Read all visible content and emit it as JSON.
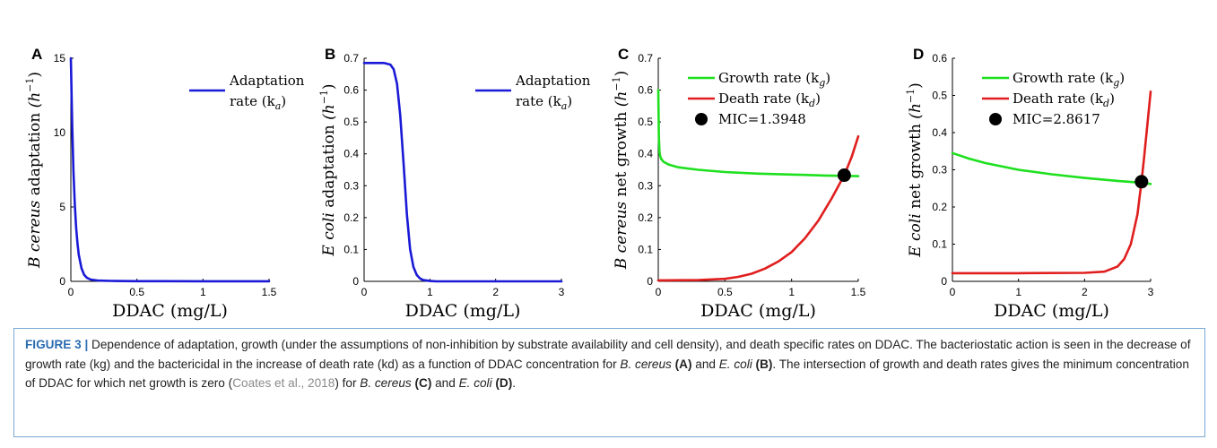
{
  "caption": {
    "label": "FIGURE 3 |",
    "t1": " Dependence of adaptation, growth (under the assumptions of non-inhibition by substrate availability and cell density), and death specific rates on DDAC. The bacteriostatic action is seen in the decrease of growth rate (kg) and the bactericidal in the increase of death rate (kd) as a function of DDAC concentration for ",
    "i1": "B. cereus",
    "b1": "(A)",
    "t2": " and ",
    "i2": "E. coli",
    "b2": "(B)",
    "t3": ". The intersection of growth and death rates gives the minimum concentration of DDAC for which net growth is zero (",
    "cite": "Coates et al., 2018",
    "t4": ") for ",
    "i3": "B. cereus",
    "b3": "(C)",
    "t5": " and ",
    "i4": "E. coli",
    "b4": "(D)",
    "t6": "."
  },
  "chart_data": [
    {
      "panel": "A",
      "type": "line",
      "xlabel": "DDAC (mg/L)",
      "ylabel_parts": [
        "B cereus",
        " adaptation ",
        "(h",
        "−1",
        ")"
      ],
      "xlim": [
        0,
        1.5
      ],
      "ylim": [
        0,
        15
      ],
      "xticks": [
        "0",
        "0.5",
        "1",
        "1.5"
      ],
      "yticks": [
        "0",
        "5",
        "10",
        "15"
      ],
      "series": [
        {
          "name": "Adaptation rate (k_a)",
          "legend_lines": [
            "Adaptation",
            "rate (k",
            "a",
            ")"
          ],
          "color": "#1a1ad6",
          "x": [
            0,
            0.01,
            0.02,
            0.03,
            0.04,
            0.05,
            0.06,
            0.08,
            0.1,
            0.12,
            0.15,
            0.2,
            0.25,
            0.3,
            0.4,
            0.5,
            0.7,
            1.0,
            1.5
          ],
          "y": [
            15,
            10.5,
            7.4,
            5.2,
            3.6,
            2.55,
            1.8,
            0.9,
            0.45,
            0.25,
            0.12,
            0.06,
            0.04,
            0.03,
            0.02,
            0.015,
            0.01,
            0.005,
            0.005
          ]
        }
      ],
      "markers": []
    },
    {
      "panel": "B",
      "type": "line",
      "xlabel": "DDAC (mg/L)",
      "ylabel_parts": [
        "E coli",
        " adaptation ",
        "(h",
        "−1",
        ")"
      ],
      "xlim": [
        0,
        3
      ],
      "ylim": [
        0,
        0.7
      ],
      "xticks": [
        "0",
        "1",
        "2",
        "3"
      ],
      "yticks": [
        "0",
        "0.1",
        "0.2",
        "0.3",
        "0.4",
        "0.5",
        "0.6",
        "0.7"
      ],
      "series": [
        {
          "name": "Adaptation rate (k_a)",
          "legend_lines": [
            "Adaptation",
            "rate (k",
            "a",
            ")"
          ],
          "color": "#1a1ad6",
          "x": [
            0,
            0.3,
            0.4,
            0.45,
            0.5,
            0.55,
            0.6,
            0.65,
            0.7,
            0.75,
            0.8,
            0.85,
            0.9,
            1.0,
            1.1,
            1.5,
            2.0,
            3.0
          ],
          "y": [
            0.685,
            0.685,
            0.68,
            0.665,
            0.62,
            0.52,
            0.37,
            0.21,
            0.1,
            0.045,
            0.02,
            0.009,
            0.004,
            0.001,
            0.0,
            0.0,
            0.0,
            0.0
          ]
        }
      ],
      "markers": []
    },
    {
      "panel": "C",
      "type": "line",
      "xlabel": "DDAC (mg/L)",
      "ylabel_parts": [
        "B cereus",
        " net growth ",
        "(h",
        "−1",
        ")"
      ],
      "xlim": [
        0,
        1.5
      ],
      "ylim": [
        0,
        0.7
      ],
      "xticks": [
        "0",
        "0.5",
        "1",
        "1.5"
      ],
      "yticks": [
        "0",
        "0.1",
        "0.2",
        "0.3",
        "0.4",
        "0.5",
        "0.6",
        "0.7"
      ],
      "series": [
        {
          "name": "Growth rate (k_g)",
          "legend_lines": [
            "Growth rate (k",
            "g",
            ")"
          ],
          "color": "#1ee01e",
          "x": [
            0,
            0.005,
            0.01,
            0.02,
            0.04,
            0.08,
            0.15,
            0.3,
            0.5,
            0.75,
            1.0,
            1.25,
            1.5
          ],
          "y": [
            0.6,
            0.45,
            0.4,
            0.385,
            0.375,
            0.366,
            0.358,
            0.35,
            0.343,
            0.338,
            0.335,
            0.332,
            0.33
          ]
        },
        {
          "name": "Death rate (k_d)",
          "legend_lines": [
            "Death rate (k",
            "d",
            ")"
          ],
          "color": "#e01e1e",
          "x": [
            0,
            0.3,
            0.5,
            0.6,
            0.7,
            0.8,
            0.9,
            1.0,
            1.1,
            1.2,
            1.3,
            1.395,
            1.45,
            1.5
          ],
          "y": [
            0.003,
            0.004,
            0.008,
            0.014,
            0.024,
            0.04,
            0.062,
            0.092,
            0.135,
            0.19,
            0.26,
            0.333,
            0.39,
            0.455
          ]
        }
      ],
      "markers": [
        {
          "label": "MIC=1.3948",
          "x": 1.3948,
          "y": 0.333
        }
      ]
    },
    {
      "panel": "D",
      "type": "line",
      "xlabel": "DDAC (mg/L)",
      "ylabel_parts": [
        "E coli",
        " net growth ",
        "(h",
        "−1",
        ")"
      ],
      "xlim": [
        0,
        3
      ],
      "ylim": [
        0,
        0.6
      ],
      "xticks": [
        "0",
        "1",
        "2",
        "3"
      ],
      "yticks": [
        "0",
        "0.1",
        "0.2",
        "0.3",
        "0.4",
        "0.5",
        "0.6"
      ],
      "series": [
        {
          "name": "Growth rate (k_g)",
          "legend_lines": [
            "Growth rate (k",
            "g",
            ")"
          ],
          "color": "#1ee01e",
          "x": [
            0,
            0.25,
            0.5,
            1.0,
            1.5,
            2.0,
            2.5,
            2.86,
            3.0
          ],
          "y": [
            0.345,
            0.33,
            0.318,
            0.3,
            0.288,
            0.278,
            0.27,
            0.265,
            0.262
          ]
        },
        {
          "name": "Death rate (k_d)",
          "legend_lines": [
            "Death rate (k",
            "d",
            ")"
          ],
          "color": "#e01e1e",
          "x": [
            0,
            1.0,
            2.0,
            2.3,
            2.5,
            2.6,
            2.7,
            2.8,
            2.862,
            2.9,
            2.95,
            3.0
          ],
          "y": [
            0.022,
            0.022,
            0.023,
            0.026,
            0.04,
            0.06,
            0.1,
            0.18,
            0.268,
            0.33,
            0.42,
            0.51
          ]
        }
      ],
      "markers": [
        {
          "label": "MIC=2.8617",
          "x": 2.8617,
          "y": 0.268
        }
      ]
    }
  ]
}
